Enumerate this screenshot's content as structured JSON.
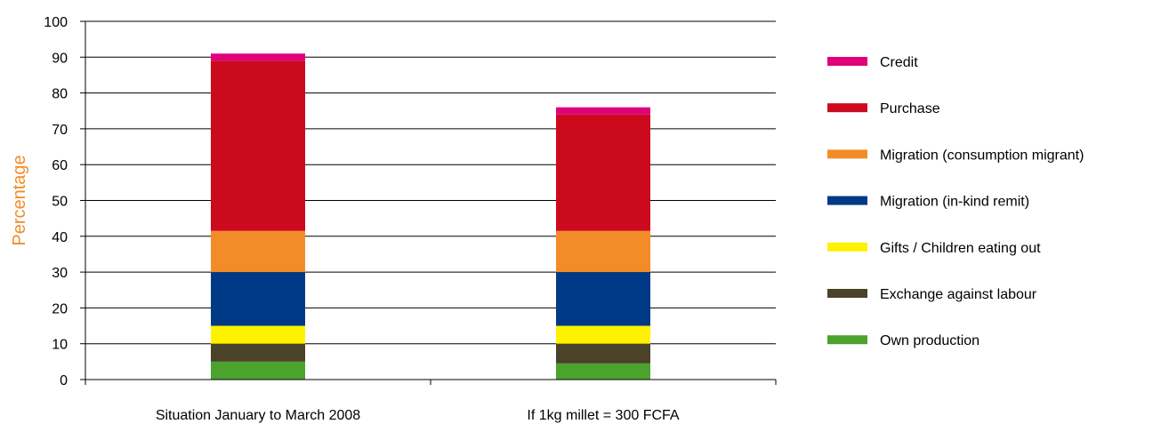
{
  "chart_data": {
    "type": "bar",
    "stacked": true,
    "ylabel": "Percentage",
    "ylabel_color": "#F28C28",
    "xlabel": "",
    "ylim": [
      0,
      100
    ],
    "yticks": [
      0,
      10,
      20,
      30,
      40,
      50,
      60,
      70,
      80,
      90,
      100
    ],
    "grid": true,
    "legend_position": "right",
    "categories": [
      "Situation January to March 2008",
      "If 1kg millet = 300 FCFA"
    ],
    "series": [
      {
        "name": "Own production",
        "color": "#4BA32E",
        "values": [
          5,
          4.5
        ]
      },
      {
        "name": "Exchange against labour",
        "color": "#4A4229",
        "values": [
          5,
          5.5
        ]
      },
      {
        "name": "Gifts / Children eating out",
        "color": "#FFF200",
        "values": [
          5,
          5
        ]
      },
      {
        "name": "Migration (in-kind remit)",
        "color": "#003A87",
        "values": [
          15,
          15
        ]
      },
      {
        "name": "Migration (consumption migrant)",
        "color": "#F28C28",
        "values": [
          11.5,
          11.5
        ]
      },
      {
        "name": "Purchase",
        "color": "#CC0A1E",
        "values": [
          47.5,
          32.5
        ]
      },
      {
        "name": "Credit",
        "color": "#E0007A",
        "values": [
          2,
          2
        ]
      }
    ]
  }
}
